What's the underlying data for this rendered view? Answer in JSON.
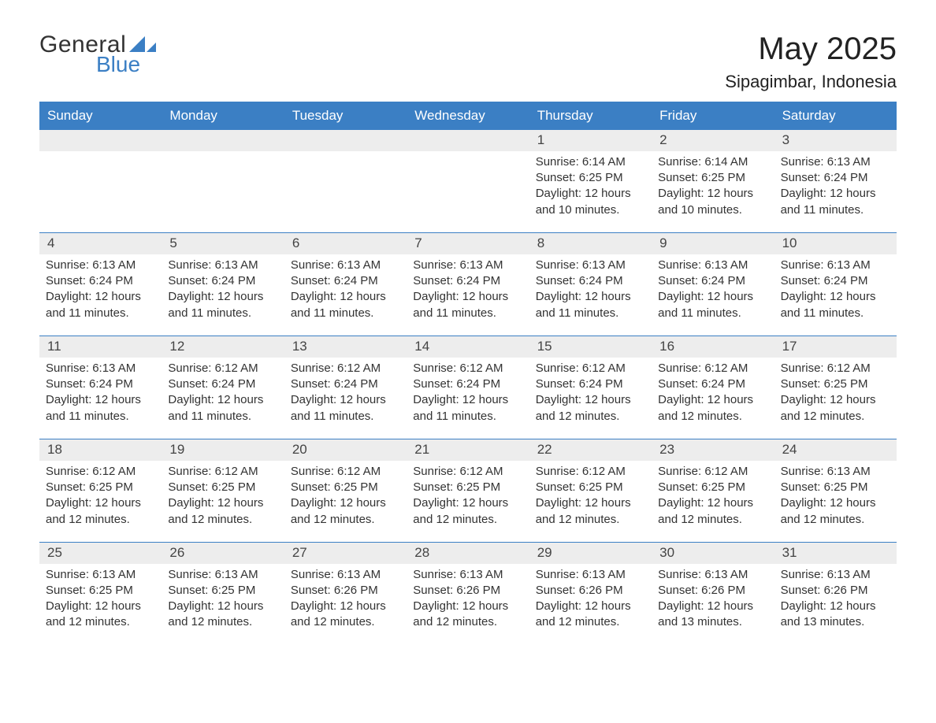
{
  "logo": {
    "general": "General",
    "blue": "Blue"
  },
  "title": "May 2025",
  "subtitle": "Sipagimbar, Indonesia",
  "colors": {
    "header_bg": "#3b7fc4",
    "header_text": "#ffffff",
    "daynum_bg": "#ededed",
    "border": "#3b7fc4",
    "text": "#333333",
    "page_bg": "#ffffff",
    "logo_blue": "#3b7fc4"
  },
  "fontsizes": {
    "title": 40,
    "subtitle": 22,
    "dow": 17,
    "daynum": 17,
    "body": 15
  },
  "days_of_week": [
    "Sunday",
    "Monday",
    "Tuesday",
    "Wednesday",
    "Thursday",
    "Friday",
    "Saturday"
  ],
  "weeks": [
    [
      {
        "empty": true
      },
      {
        "empty": true
      },
      {
        "empty": true
      },
      {
        "empty": true
      },
      {
        "num": "1",
        "sunrise": "Sunrise: 6:14 AM",
        "sunset": "Sunset: 6:25 PM",
        "day1": "Daylight: 12 hours",
        "day2": "and 10 minutes."
      },
      {
        "num": "2",
        "sunrise": "Sunrise: 6:14 AM",
        "sunset": "Sunset: 6:25 PM",
        "day1": "Daylight: 12 hours",
        "day2": "and 10 minutes."
      },
      {
        "num": "3",
        "sunrise": "Sunrise: 6:13 AM",
        "sunset": "Sunset: 6:24 PM",
        "day1": "Daylight: 12 hours",
        "day2": "and 11 minutes."
      }
    ],
    [
      {
        "num": "4",
        "sunrise": "Sunrise: 6:13 AM",
        "sunset": "Sunset: 6:24 PM",
        "day1": "Daylight: 12 hours",
        "day2": "and 11 minutes."
      },
      {
        "num": "5",
        "sunrise": "Sunrise: 6:13 AM",
        "sunset": "Sunset: 6:24 PM",
        "day1": "Daylight: 12 hours",
        "day2": "and 11 minutes."
      },
      {
        "num": "6",
        "sunrise": "Sunrise: 6:13 AM",
        "sunset": "Sunset: 6:24 PM",
        "day1": "Daylight: 12 hours",
        "day2": "and 11 minutes."
      },
      {
        "num": "7",
        "sunrise": "Sunrise: 6:13 AM",
        "sunset": "Sunset: 6:24 PM",
        "day1": "Daylight: 12 hours",
        "day2": "and 11 minutes."
      },
      {
        "num": "8",
        "sunrise": "Sunrise: 6:13 AM",
        "sunset": "Sunset: 6:24 PM",
        "day1": "Daylight: 12 hours",
        "day2": "and 11 minutes."
      },
      {
        "num": "9",
        "sunrise": "Sunrise: 6:13 AM",
        "sunset": "Sunset: 6:24 PM",
        "day1": "Daylight: 12 hours",
        "day2": "and 11 minutes."
      },
      {
        "num": "10",
        "sunrise": "Sunrise: 6:13 AM",
        "sunset": "Sunset: 6:24 PM",
        "day1": "Daylight: 12 hours",
        "day2": "and 11 minutes."
      }
    ],
    [
      {
        "num": "11",
        "sunrise": "Sunrise: 6:13 AM",
        "sunset": "Sunset: 6:24 PM",
        "day1": "Daylight: 12 hours",
        "day2": "and 11 minutes."
      },
      {
        "num": "12",
        "sunrise": "Sunrise: 6:12 AM",
        "sunset": "Sunset: 6:24 PM",
        "day1": "Daylight: 12 hours",
        "day2": "and 11 minutes."
      },
      {
        "num": "13",
        "sunrise": "Sunrise: 6:12 AM",
        "sunset": "Sunset: 6:24 PM",
        "day1": "Daylight: 12 hours",
        "day2": "and 11 minutes."
      },
      {
        "num": "14",
        "sunrise": "Sunrise: 6:12 AM",
        "sunset": "Sunset: 6:24 PM",
        "day1": "Daylight: 12 hours",
        "day2": "and 11 minutes."
      },
      {
        "num": "15",
        "sunrise": "Sunrise: 6:12 AM",
        "sunset": "Sunset: 6:24 PM",
        "day1": "Daylight: 12 hours",
        "day2": "and 12 minutes."
      },
      {
        "num": "16",
        "sunrise": "Sunrise: 6:12 AM",
        "sunset": "Sunset: 6:24 PM",
        "day1": "Daylight: 12 hours",
        "day2": "and 12 minutes."
      },
      {
        "num": "17",
        "sunrise": "Sunrise: 6:12 AM",
        "sunset": "Sunset: 6:25 PM",
        "day1": "Daylight: 12 hours",
        "day2": "and 12 minutes."
      }
    ],
    [
      {
        "num": "18",
        "sunrise": "Sunrise: 6:12 AM",
        "sunset": "Sunset: 6:25 PM",
        "day1": "Daylight: 12 hours",
        "day2": "and 12 minutes."
      },
      {
        "num": "19",
        "sunrise": "Sunrise: 6:12 AM",
        "sunset": "Sunset: 6:25 PM",
        "day1": "Daylight: 12 hours",
        "day2": "and 12 minutes."
      },
      {
        "num": "20",
        "sunrise": "Sunrise: 6:12 AM",
        "sunset": "Sunset: 6:25 PM",
        "day1": "Daylight: 12 hours",
        "day2": "and 12 minutes."
      },
      {
        "num": "21",
        "sunrise": "Sunrise: 6:12 AM",
        "sunset": "Sunset: 6:25 PM",
        "day1": "Daylight: 12 hours",
        "day2": "and 12 minutes."
      },
      {
        "num": "22",
        "sunrise": "Sunrise: 6:12 AM",
        "sunset": "Sunset: 6:25 PM",
        "day1": "Daylight: 12 hours",
        "day2": "and 12 minutes."
      },
      {
        "num": "23",
        "sunrise": "Sunrise: 6:12 AM",
        "sunset": "Sunset: 6:25 PM",
        "day1": "Daylight: 12 hours",
        "day2": "and 12 minutes."
      },
      {
        "num": "24",
        "sunrise": "Sunrise: 6:13 AM",
        "sunset": "Sunset: 6:25 PM",
        "day1": "Daylight: 12 hours",
        "day2": "and 12 minutes."
      }
    ],
    [
      {
        "num": "25",
        "sunrise": "Sunrise: 6:13 AM",
        "sunset": "Sunset: 6:25 PM",
        "day1": "Daylight: 12 hours",
        "day2": "and 12 minutes."
      },
      {
        "num": "26",
        "sunrise": "Sunrise: 6:13 AM",
        "sunset": "Sunset: 6:25 PM",
        "day1": "Daylight: 12 hours",
        "day2": "and 12 minutes."
      },
      {
        "num": "27",
        "sunrise": "Sunrise: 6:13 AM",
        "sunset": "Sunset: 6:26 PM",
        "day1": "Daylight: 12 hours",
        "day2": "and 12 minutes."
      },
      {
        "num": "28",
        "sunrise": "Sunrise: 6:13 AM",
        "sunset": "Sunset: 6:26 PM",
        "day1": "Daylight: 12 hours",
        "day2": "and 12 minutes."
      },
      {
        "num": "29",
        "sunrise": "Sunrise: 6:13 AM",
        "sunset": "Sunset: 6:26 PM",
        "day1": "Daylight: 12 hours",
        "day2": "and 12 minutes."
      },
      {
        "num": "30",
        "sunrise": "Sunrise: 6:13 AM",
        "sunset": "Sunset: 6:26 PM",
        "day1": "Daylight: 12 hours",
        "day2": "and 13 minutes."
      },
      {
        "num": "31",
        "sunrise": "Sunrise: 6:13 AM",
        "sunset": "Sunset: 6:26 PM",
        "day1": "Daylight: 12 hours",
        "day2": "and 13 minutes."
      }
    ]
  ]
}
